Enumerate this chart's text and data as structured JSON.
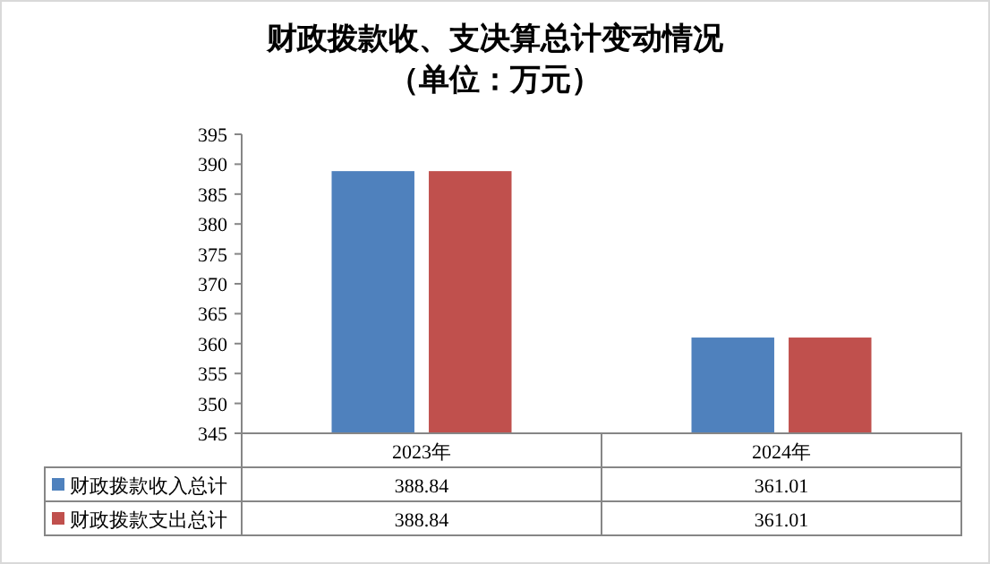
{
  "chart_data": {
    "type": "bar",
    "title": "财政拨款收、支决算总计变动情况",
    "subtitle": "（单位：万元）",
    "categories": [
      "2023年",
      "2024年"
    ],
    "series": [
      {
        "name": "财政拨款收入总计",
        "color": "#4f81bd",
        "values": [
          388.84,
          361.01
        ]
      },
      {
        "name": "财政拨款支出总计",
        "color": "#c0504d",
        "values": [
          388.84,
          361.01
        ]
      }
    ],
    "ylim": [
      345,
      395
    ],
    "yticks": [
      345,
      350,
      355,
      360,
      365,
      370,
      375,
      380,
      385,
      390,
      395
    ],
    "grid": false,
    "legend": "bottom",
    "data_labels": true
  }
}
